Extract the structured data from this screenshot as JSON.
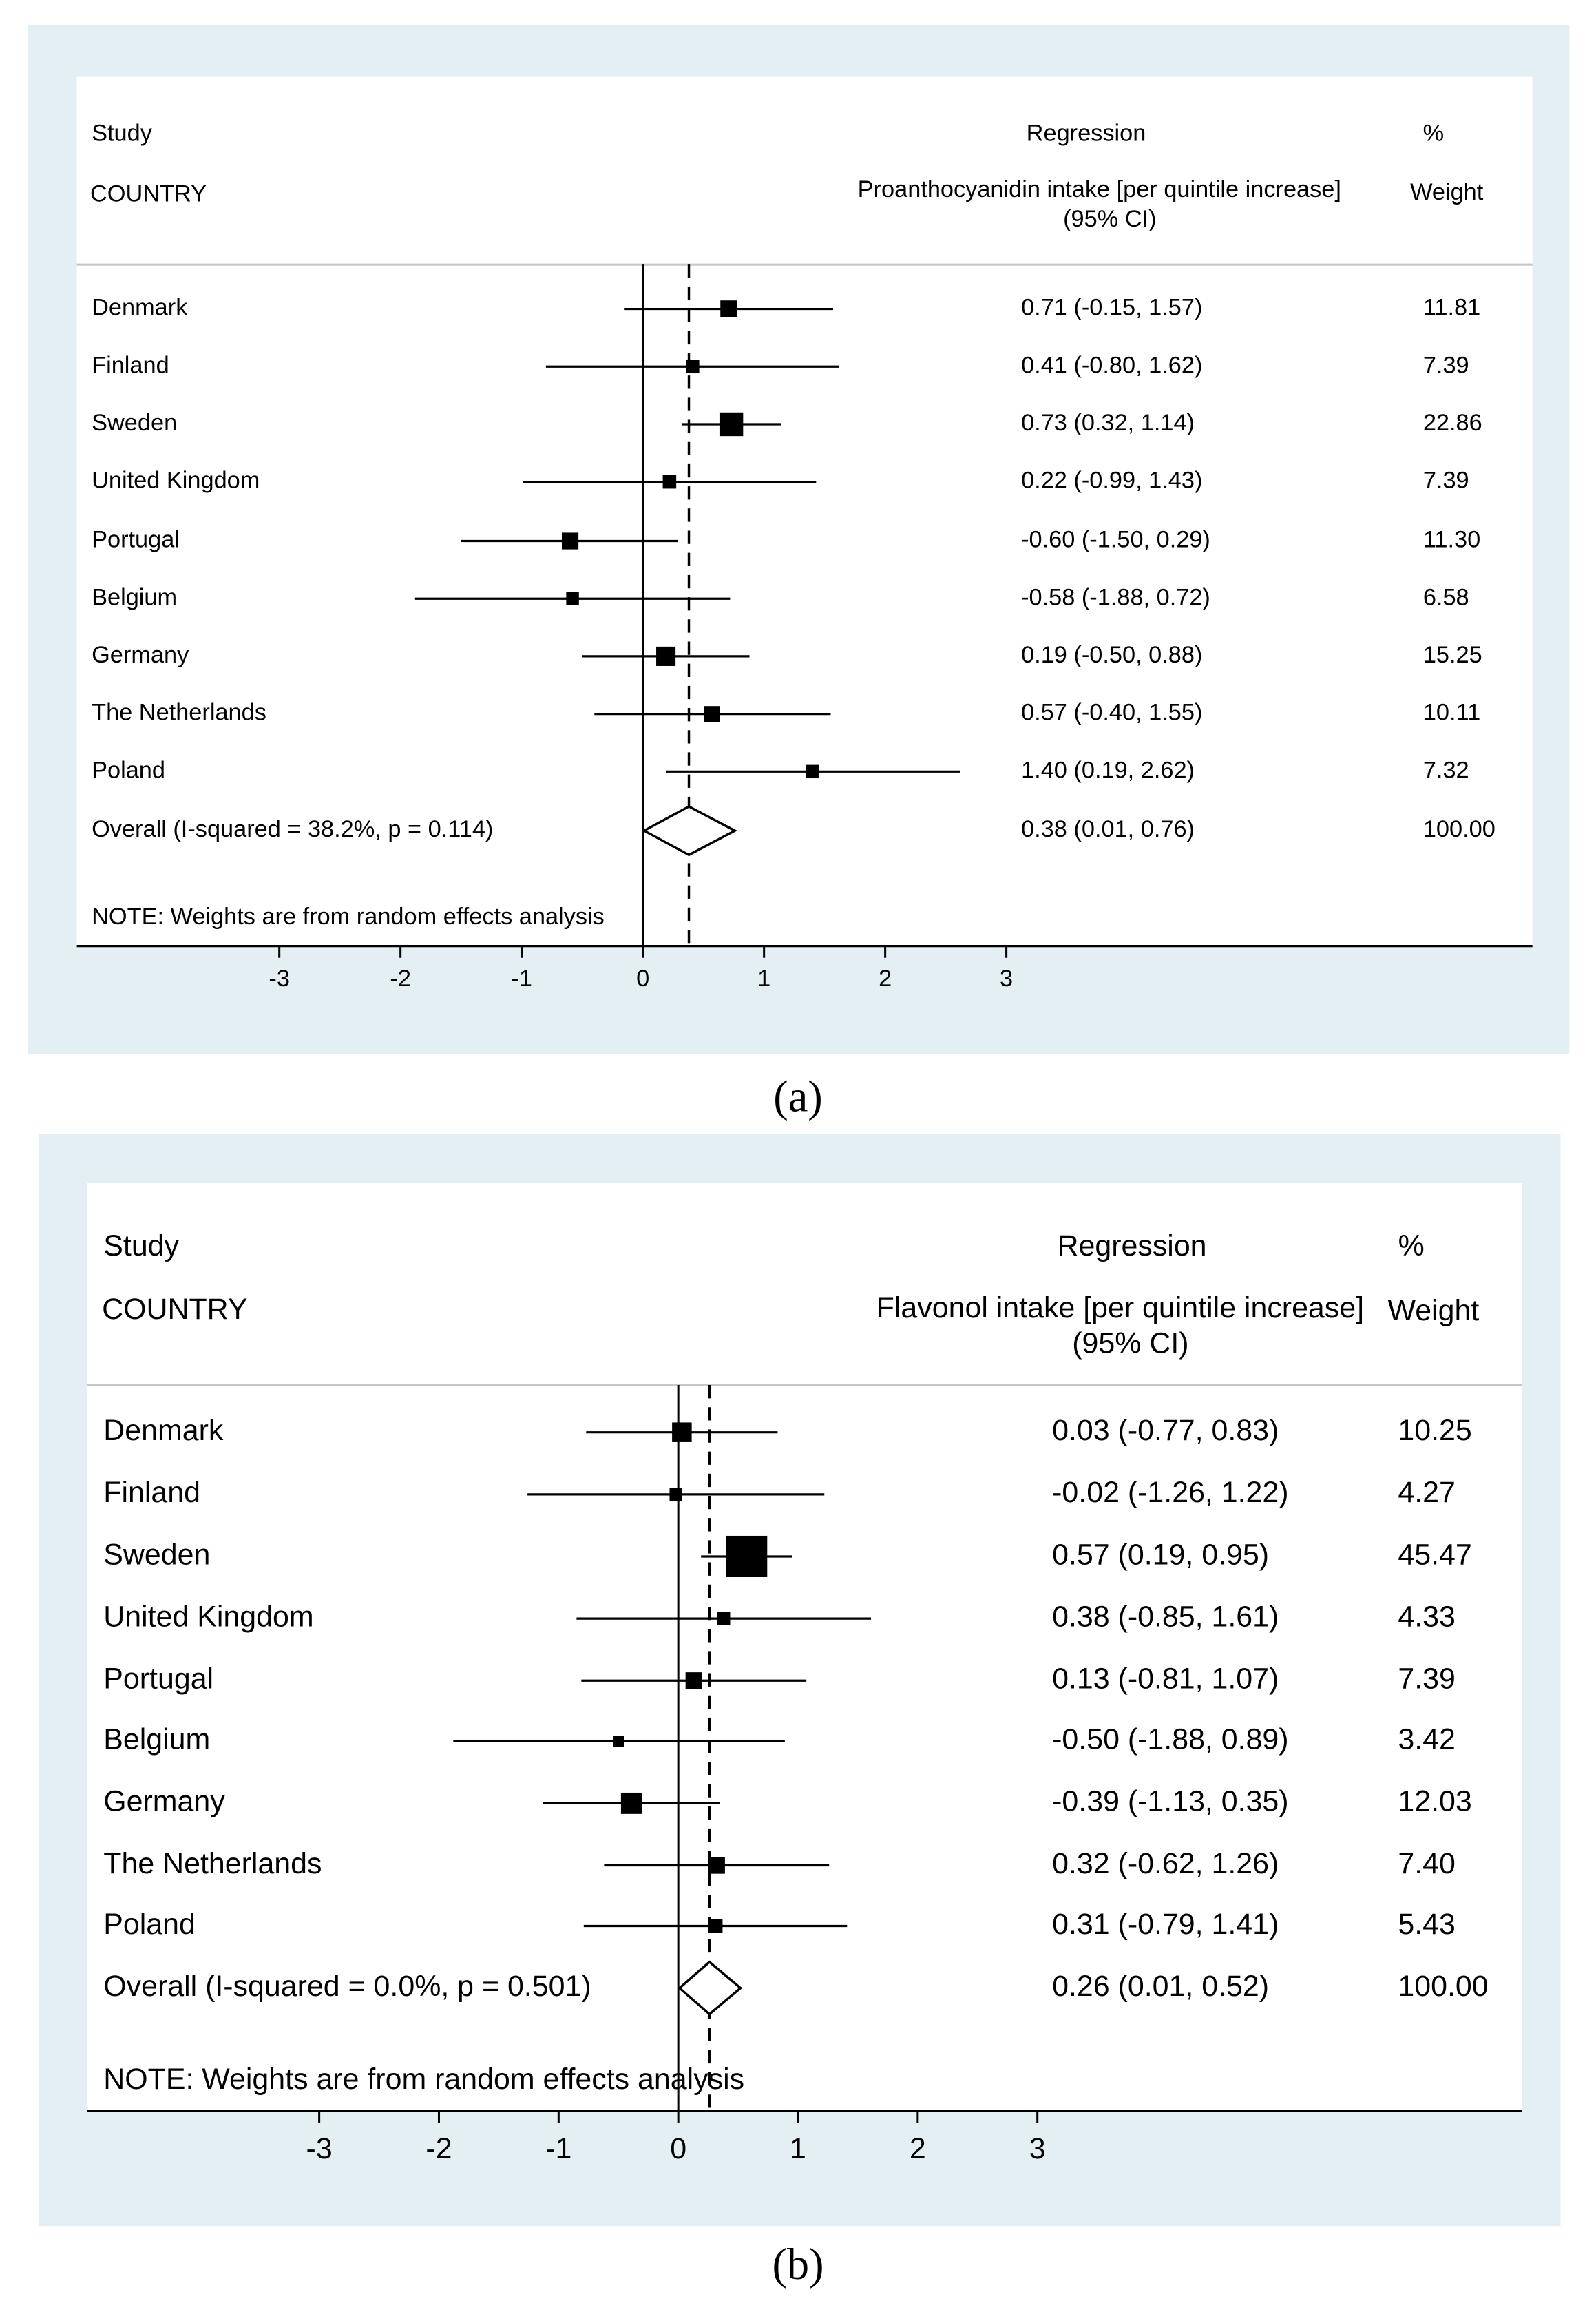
{
  "chart_data": [
    {
      "type": "forest",
      "panel_label": "(a)",
      "header": {
        "study": "Study",
        "group": "COUNTRY",
        "effect_title": "Regression",
        "effect_subtitle": "Proanthocyanidin intake [per quintile increase]",
        "ci_label": "(95% CI)",
        "weight_title": "%",
        "weight_subtitle": "Weight"
      },
      "studies": [
        {
          "name": "Denmark",
          "est": 0.71,
          "lo": -0.15,
          "hi": 1.57,
          "ci_text": "0.71 (-0.15, 1.57)",
          "weight": "11.81"
        },
        {
          "name": "Finland",
          "est": 0.41,
          "lo": -0.8,
          "hi": 1.62,
          "ci_text": "0.41 (-0.80, 1.62)",
          "weight": "7.39"
        },
        {
          "name": "Sweden",
          "est": 0.73,
          "lo": 0.32,
          "hi": 1.14,
          "ci_text": "0.73 (0.32, 1.14)",
          "weight": "22.86"
        },
        {
          "name": "United Kingdom",
          "est": 0.22,
          "lo": -0.99,
          "hi": 1.43,
          "ci_text": "0.22 (-0.99, 1.43)",
          "weight": "7.39"
        },
        {
          "name": "Portugal",
          "est": -0.6,
          "lo": -1.5,
          "hi": 0.29,
          "ci_text": "-0.60 (-1.50, 0.29)",
          "weight": "11.30"
        },
        {
          "name": "Belgium",
          "est": -0.58,
          "lo": -1.88,
          "hi": 0.72,
          "ci_text": "-0.58 (-1.88, 0.72)",
          "weight": "6.58"
        },
        {
          "name": "Germany",
          "est": 0.19,
          "lo": -0.5,
          "hi": 0.88,
          "ci_text": "0.19 (-0.50, 0.88)",
          "weight": "15.25"
        },
        {
          "name": "The Netherlands",
          "est": 0.57,
          "lo": -0.4,
          "hi": 1.55,
          "ci_text": "0.57 (-0.40, 1.55)",
          "weight": "10.11"
        },
        {
          "name": "Poland",
          "est": 1.4,
          "lo": 0.19,
          "hi": 2.62,
          "ci_text": "1.40 (0.19, 2.62)",
          "weight": "7.32"
        }
      ],
      "overall": {
        "name": "Overall  (I-squared = 38.2%, p = 0.114)",
        "est": 0.38,
        "lo": 0.01,
        "hi": 0.76,
        "ci_text": "0.38 (0.01, 0.76)",
        "weight": "100.00"
      },
      "note": "NOTE: Weights are from random effects analysis",
      "xticks": [
        "-3",
        "-2",
        "-1",
        "0",
        "1",
        "2",
        "3"
      ],
      "xlim": [
        -3,
        3
      ]
    },
    {
      "type": "forest",
      "panel_label": "(b)",
      "header": {
        "study": "Study",
        "group": "COUNTRY",
        "effect_title": "Regression",
        "effect_subtitle": "Flavonol intake [per quintile increase]",
        "ci_label": "(95% CI)",
        "weight_title": "%",
        "weight_subtitle": "Weight"
      },
      "studies": [
        {
          "name": "Denmark",
          "est": 0.03,
          "lo": -0.77,
          "hi": 0.83,
          "ci_text": "0.03 (-0.77, 0.83)",
          "weight": "10.25"
        },
        {
          "name": "Finland",
          "est": -0.02,
          "lo": -1.26,
          "hi": 1.22,
          "ci_text": "-0.02 (-1.26, 1.22)",
          "weight": "4.27"
        },
        {
          "name": "Sweden",
          "est": 0.57,
          "lo": 0.19,
          "hi": 0.95,
          "ci_text": "0.57 (0.19, 0.95)",
          "weight": "45.47"
        },
        {
          "name": "United Kingdom",
          "est": 0.38,
          "lo": -0.85,
          "hi": 1.61,
          "ci_text": "0.38 (-0.85, 1.61)",
          "weight": "4.33"
        },
        {
          "name": "Portugal",
          "est": 0.13,
          "lo": -0.81,
          "hi": 1.07,
          "ci_text": "0.13 (-0.81, 1.07)",
          "weight": "7.39"
        },
        {
          "name": "Belgium",
          "est": -0.5,
          "lo": -1.88,
          "hi": 0.89,
          "ci_text": "-0.50 (-1.88, 0.89)",
          "weight": "3.42"
        },
        {
          "name": "Germany",
          "est": -0.39,
          "lo": -1.13,
          "hi": 0.35,
          "ci_text": "-0.39 (-1.13, 0.35)",
          "weight": "12.03"
        },
        {
          "name": "The Netherlands",
          "est": 0.32,
          "lo": -0.62,
          "hi": 1.26,
          "ci_text": "0.32 (-0.62, 1.26)",
          "weight": "7.40"
        },
        {
          "name": "Poland",
          "est": 0.31,
          "lo": -0.79,
          "hi": 1.41,
          "ci_text": "0.31 (-0.79, 1.41)",
          "weight": "5.43"
        }
      ],
      "overall": {
        "name": "Overall  (I-squared = 0.0%, p = 0.501)",
        "est": 0.26,
        "lo": 0.01,
        "hi": 0.52,
        "ci_text": "0.26 (0.01, 0.52)",
        "weight": "100.00"
      },
      "note": "NOTE: Weights are from random effects analysis",
      "xticks": [
        "-3",
        "-2",
        "-1",
        "0",
        "1",
        "2",
        "3"
      ],
      "xlim": [
        -3,
        3
      ]
    }
  ],
  "colors": {
    "panel_bg": "#e3eff2",
    "plot_bg": "#ffffff",
    "ink": "#000000",
    "divider": "#c8c8c8"
  }
}
